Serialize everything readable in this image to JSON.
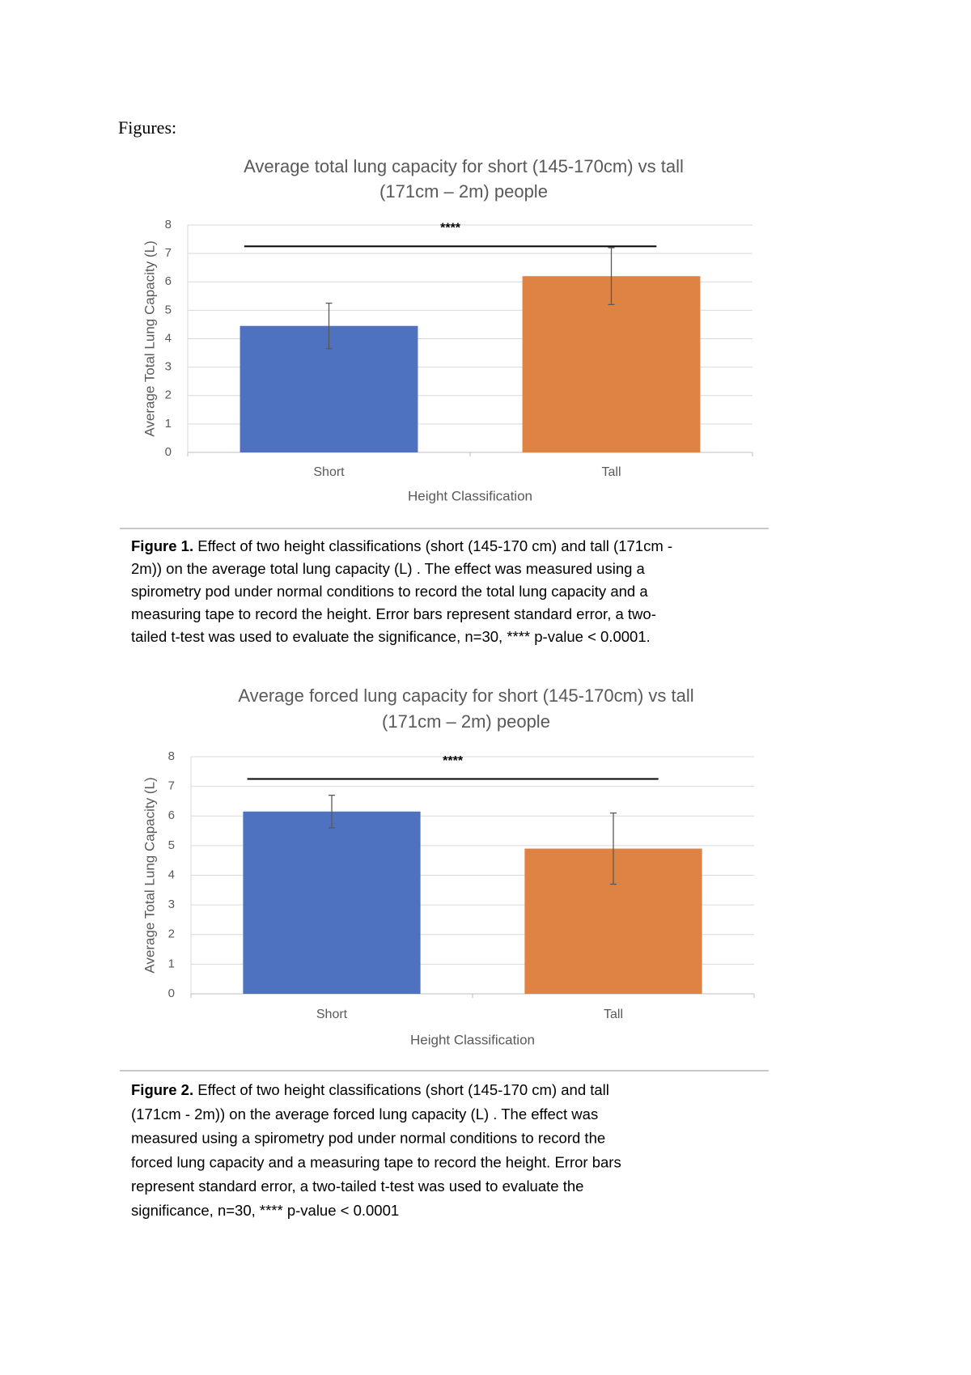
{
  "heading": "Figures:",
  "chart_data": [
    {
      "type": "bar",
      "title": [
        "Average total lung capacity for short (145-170cm) vs tall",
        "(171cm – 2m) people"
      ],
      "categories": [
        "Short",
        "Tall"
      ],
      "values": [
        4.45,
        6.2
      ],
      "errors": [
        0.8,
        1.0
      ],
      "colors": [
        "#4e72bf",
        "#df8344"
      ],
      "x_label": "Height Classification",
      "y_label": "Average Total Lung Capacity (L)",
      "ylim": [
        0,
        8
      ],
      "yticks": [
        0,
        1,
        2,
        3,
        4,
        5,
        6,
        7,
        8
      ],
      "grid": true,
      "annotation": "****"
    },
    {
      "type": "bar",
      "title": [
        "Average forced lung capacity for short (145-170cm) vs tall",
        "(171cm – 2m) people"
      ],
      "categories": [
        "Short",
        "Tall"
      ],
      "values": [
        6.15,
        4.9
      ],
      "errors": [
        0.55,
        1.2
      ],
      "colors": [
        "#4e72bf",
        "#df8344"
      ],
      "x_label": "Height Classification",
      "y_label": "Average Total Lung Capacity (L)",
      "ylim": [
        0,
        8
      ],
      "yticks": [
        0,
        1,
        2,
        3,
        4,
        5,
        6,
        7,
        8
      ],
      "grid": true,
      "annotation": "****"
    }
  ],
  "captions": [
    {
      "label": "Figure 1.",
      "lines": [
        " Effect of two height classifications (short (145-170 cm) and tall (171cm -",
        "2m)) on the average total lung capacity (L) . The effect was measured using a",
        "spirometry pod under normal conditions to record the total lung capacity and a",
        "measuring tape to record the height. Error bars represent standard error, a two-",
        "tailed t-test was used to evaluate the significance, n=30, **** p-value < 0.0001."
      ]
    },
    {
      "label": "Figure 2.",
      "lines": [
        " Effect of two height classifications (short (145-170 cm) and tall",
        "(171cm - 2m)) on the average forced lung capacity (L) . The effect was",
        "measured using a spirometry pod under normal conditions to record the",
        "forced lung capacity and a measuring tape to record the height. Error bars",
        "represent standard error, a two-tailed t-test was used to evaluate the",
        "significance, n=30, **** p-value < 0.0001"
      ]
    }
  ]
}
